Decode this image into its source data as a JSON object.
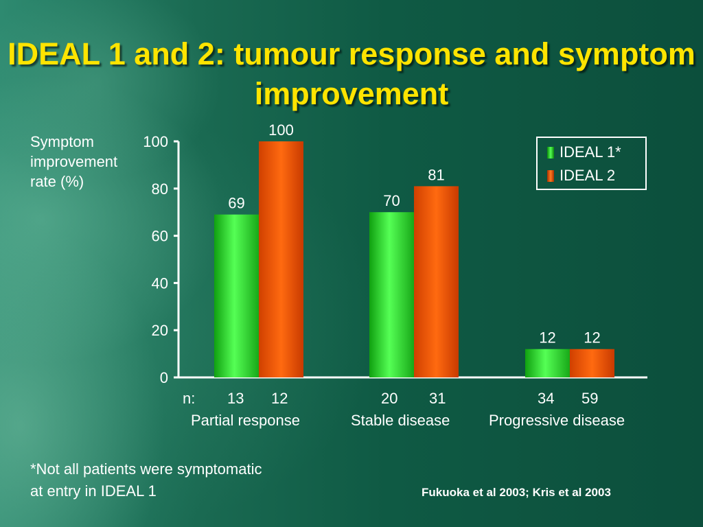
{
  "title": "IDEAL 1 and 2: tumour response and symptom improvement",
  "y_axis_label": "Symptom\nimprovement\nrate (%)",
  "n_prefix": "n:",
  "footnote": "*Not all patients were symptomatic\nat entry in IDEAL 1",
  "citation": "Fukuoka et al 2003; Kris et al 2003",
  "colors": {
    "ideal1": "#22dd22",
    "ideal2": "#ff5a00",
    "text": "#ffffff",
    "title": "#ffe400"
  },
  "chart_data": {
    "type": "bar",
    "title": "",
    "ylabel": "Symptom improvement rate (%)",
    "ylim": [
      0,
      100
    ],
    "yticks": [
      0,
      20,
      40,
      60,
      80,
      100
    ],
    "categories": [
      "Partial response",
      "Stable disease",
      "Progressive disease"
    ],
    "series": [
      {
        "name": "IDEAL 1*",
        "values": [
          69,
          70,
          12
        ],
        "n": [
          13,
          20,
          34
        ]
      },
      {
        "name": "IDEAL 2",
        "values": [
          100,
          81,
          12
        ],
        "n": [
          12,
          31,
          59
        ]
      }
    ],
    "legend_position": "top-right",
    "grid": false
  }
}
